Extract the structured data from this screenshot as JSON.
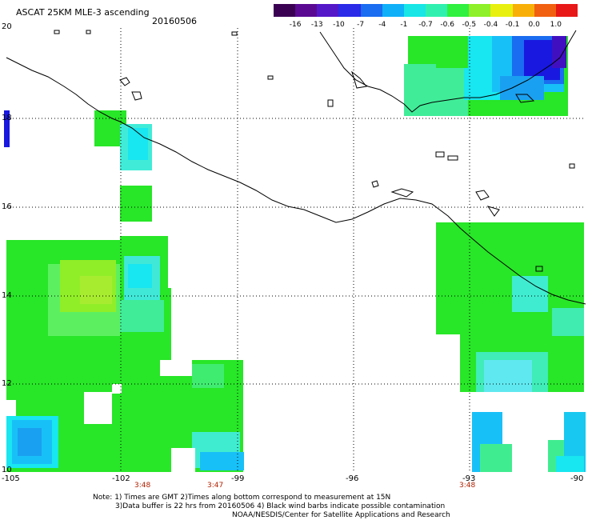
{
  "header": {
    "title": "ASCAT 25KM MLE-3 ascending",
    "date": "20160506"
  },
  "colorbar": {
    "labels": [
      "-16",
      "-13",
      "-10",
      "-7",
      "-4",
      "-1",
      "-0.7",
      "-0.6",
      "-0.5",
      "-0.4",
      "-0.1",
      "0.0",
      "1.0"
    ],
    "colors": [
      "#3a0052",
      "#5a0a92",
      "#5518c8",
      "#2a2ae8",
      "#1a6cf0",
      "#10b0f8",
      "#18e6e6",
      "#30f0b0",
      "#30f040",
      "#8ef028",
      "#e8f010",
      "#f8b008",
      "#f06010",
      "#e81818"
    ]
  },
  "axes": {
    "x_labels": [
      "-105",
      "-102",
      "-99",
      "-96",
      "-93",
      "-90"
    ],
    "y_labels": [
      "20",
      "18",
      "16",
      "14",
      "12",
      "10"
    ],
    "time_labels": [
      "3:48",
      "3:47",
      "3:48"
    ]
  },
  "footer": {
    "line1": "Note: 1) Times are GMT 2)Times along bottom correspond to measurement at 15N",
    "line2": "3)Data buffer is 22 hrs from 20160506 4) Black wind barbs indicate possible contamination",
    "line3": "NOAA/NESDIS/Center for Satellite Applications and Research"
  },
  "legend_colors": {
    "green": "#28e628",
    "light_green": "#5cf060",
    "yellow_green": "#90ee28",
    "cyan": "#18e6f0",
    "light_blue": "#18c0f8",
    "blue": "#1aa0f0",
    "deep_blue": "#1818e0",
    "violet": "#4010c0"
  }
}
